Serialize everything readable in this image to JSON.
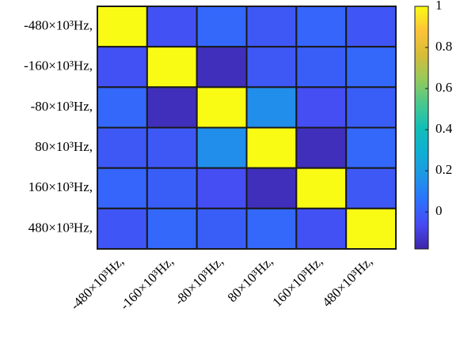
{
  "chart_data": {
    "type": "heatmap",
    "x_categories": [
      "-480×10³Hz,",
      "-160×10³Hz,",
      "-80×10³Hz,",
      "80×10³Hz,",
      "160×10³Hz,",
      "480×10³Hz,"
    ],
    "y_categories": [
      "-480×10³Hz,",
      "-160×10³Hz,",
      "-80×10³Hz,",
      "80×10³Hz,",
      "160×10³Hz,",
      "480×10³Hz,"
    ],
    "values": [
      [
        1,
        -0.04,
        0.03,
        -0.02,
        0.02,
        -0.03
      ],
      [
        -0.04,
        1,
        -0.15,
        -0.02,
        0.0,
        0.03
      ],
      [
        0.03,
        -0.15,
        1,
        0.15,
        -0.05,
        0.0
      ],
      [
        -0.02,
        -0.02,
        0.15,
        1,
        -0.15,
        0.03
      ],
      [
        0.02,
        0.0,
        -0.05,
        -0.15,
        1,
        -0.02
      ],
      [
        -0.03,
        0.03,
        0.0,
        0.03,
        -0.04,
        1
      ]
    ],
    "colormap": "parula",
    "zlim": [
      -0.18,
      1
    ],
    "colorbar_ticks": [
      0,
      0.2,
      0.4,
      0.6,
      0.8,
      1
    ]
  }
}
